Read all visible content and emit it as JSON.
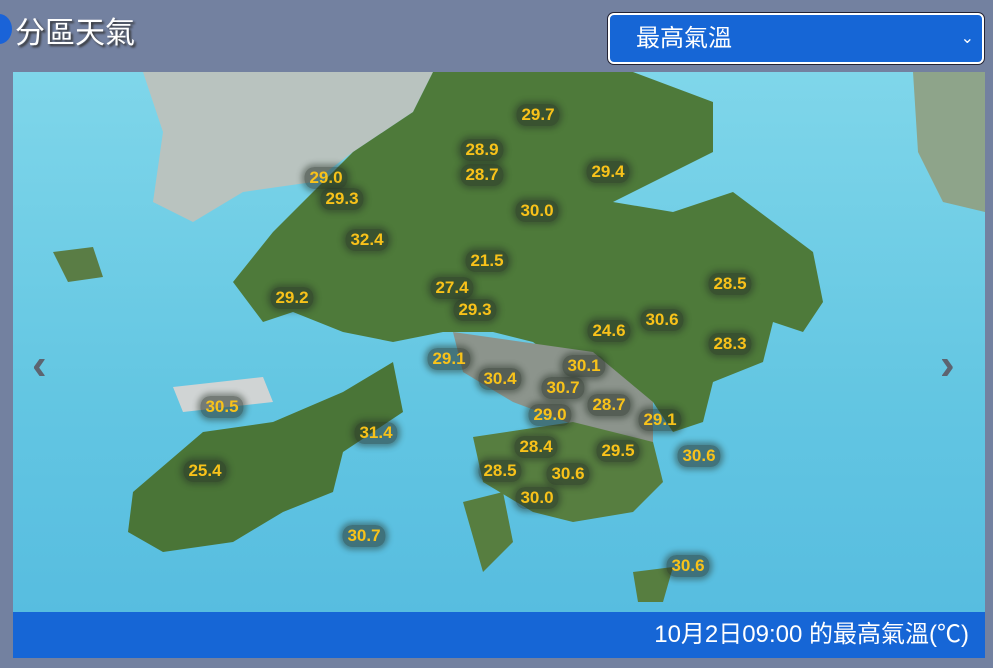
{
  "header": {
    "title": "分區天氣"
  },
  "selector": {
    "selected": "最高氣溫",
    "icon": "chevron-down-icon"
  },
  "map": {
    "temperatures": [
      "29.7",
      "28.9",
      "28.7",
      "29.4",
      "29.0",
      "29.3",
      "30.0",
      "32.4",
      "21.5",
      "28.5",
      "27.4",
      "29.2",
      "29.3",
      "24.6",
      "30.6",
      "28.3",
      "29.1",
      "30.1",
      "30.4",
      "30.7",
      "30.5",
      "28.7",
      "29.0",
      "29.1",
      "31.4",
      "28.4",
      "29.5",
      "30.6",
      "28.5",
      "30.6",
      "25.4",
      "30.0",
      "30.7",
      "30.6"
    ],
    "label_color": "#f8c21a"
  },
  "nav": {
    "prev": "‹",
    "next": "›"
  },
  "footer": {
    "caption": "10月2日09:00 的最高氣溫(℃)"
  }
}
